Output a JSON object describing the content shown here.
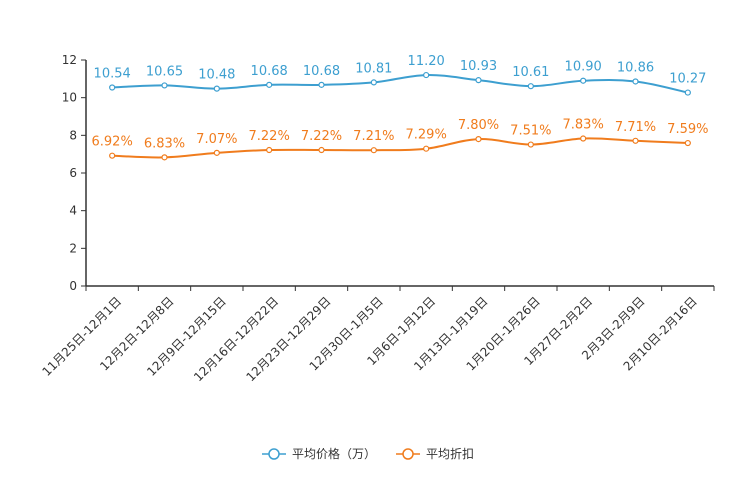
{
  "chart_data": {
    "type": "line",
    "title": "",
    "xlabel": "",
    "ylabel": "",
    "ylim": [
      0,
      12
    ],
    "yticks": [
      0,
      2,
      4,
      6,
      8,
      10,
      12
    ],
    "grid": false,
    "legend_position": "bottom-center",
    "categories": [
      "11月25日-12月1日",
      "12月2日-12月8日",
      "12月9日-12月15日",
      "12月16日-12月22日",
      "12月23日-12月29日",
      "12月30日-1月5日",
      "1月6日-1月12日",
      "1月13日-1月19日",
      "1月20日-1月26日",
      "1月27日-2月2日",
      "2月3日-2月9日",
      "2月10日-2月16日"
    ],
    "series": [
      {
        "name": "平均价格（万）",
        "color": "#3d9fd0",
        "values": [
          10.54,
          10.65,
          10.48,
          10.68,
          10.68,
          10.81,
          11.2,
          10.93,
          10.61,
          10.9,
          10.86,
          10.27
        ],
        "labels": [
          "10.54",
          "10.65",
          "10.48",
          "10.68",
          "10.68",
          "10.81",
          "11.20",
          "10.93",
          "10.61",
          "10.90",
          "10.86",
          "10.27"
        ]
      },
      {
        "name": "平均折扣",
        "color": "#f07c1d",
        "values": [
          6.92,
          6.83,
          7.07,
          7.22,
          7.22,
          7.21,
          7.29,
          7.8,
          7.51,
          7.83,
          7.71,
          7.59
        ],
        "labels": [
          "6.92%",
          "6.83%",
          "7.07%",
          "7.22%",
          "7.22%",
          "7.21%",
          "7.29%",
          "7.80%",
          "7.51%",
          "7.83%",
          "7.71%",
          "7.59%"
        ]
      }
    ]
  }
}
